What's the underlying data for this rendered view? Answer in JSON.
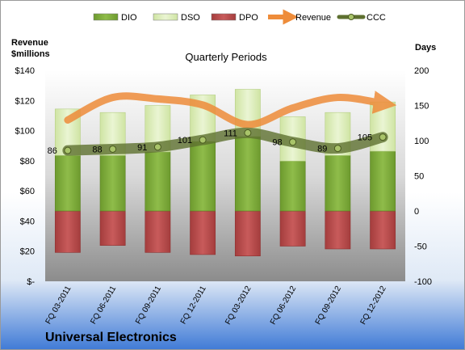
{
  "chart_data": {
    "type": "bar",
    "title": "Quarterly Periods",
    "company": "Universal Electronics",
    "left_axis_title": [
      "Revenue",
      "$millions"
    ],
    "right_axis_title": "Days",
    "left_ticks": [
      "$-",
      "$20",
      "$40",
      "$60",
      "$80",
      "$100",
      "$120",
      "$140"
    ],
    "right_ticks": [
      "-100",
      "-50",
      "0",
      "50",
      "100",
      "150",
      "200"
    ],
    "left_ylim": [
      0,
      140
    ],
    "right_ylim": [
      -100,
      200
    ],
    "categories": [
      "FQ 03-2011",
      "FQ 06-2011",
      "FQ 09-2011",
      "FQ 12-2011",
      "FQ 03-2012",
      "FQ 06-2012",
      "FQ 09-2012",
      "FQ 12-2012"
    ],
    "legend": [
      "DIO",
      "DSO",
      "DPO",
      "Revenue",
      "CCC"
    ],
    "series": [
      {
        "name": "DIO",
        "axis": "right",
        "values": [
          79,
          79,
          84,
          99,
          106,
          71,
          79,
          85
        ],
        "color": "#7fa83a"
      },
      {
        "name": "DSO",
        "axis": "right",
        "values": [
          66,
          61,
          66,
          66,
          67,
          63,
          61,
          70
        ],
        "color": "#d8ebb0"
      },
      {
        "name": "DPO",
        "axis": "right",
        "values": [
          -59,
          -49,
          -59,
          -62,
          -64,
          -50,
          -54,
          -54
        ],
        "color": "#b84a4a"
      },
      {
        "name": "Revenue",
        "axis": "left",
        "values": [
          107,
          122,
          121,
          117,
          104,
          115,
          122,
          118
        ],
        "color": "#ee8c3a"
      },
      {
        "name": "CCC",
        "axis": "right",
        "values": [
          86,
          88,
          91,
          101,
          111,
          98,
          89,
          105
        ],
        "labels": [
          "86",
          "88",
          "91",
          "101",
          "111",
          "98",
          "89",
          "105"
        ],
        "color": "#5e7030"
      }
    ]
  }
}
